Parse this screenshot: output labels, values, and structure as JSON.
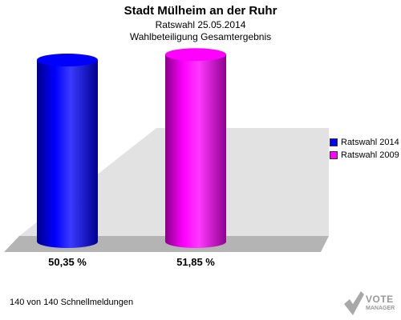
{
  "header": {
    "title": "Stadt Mülheim an der Ruhr",
    "subtitle": "Ratswahl 25.05.2014",
    "subtitle2": "Wahlbeteiligung Gesamtergebnis"
  },
  "chart_data": {
    "type": "bar",
    "categories": [
      "Ratswahl 2014",
      "Ratswahl 2009"
    ],
    "values": [
      50.35,
      51.85
    ],
    "value_labels": [
      "50,35 %",
      "51,85 %"
    ],
    "ylim": [
      0,
      55
    ],
    "grid": false,
    "legend_position": "right",
    "colors": [
      "#0000ff",
      "#ff00ff"
    ]
  },
  "legend": {
    "items": [
      {
        "label": "Ratswahl 2014",
        "color": "#0000ff"
      },
      {
        "label": "Ratswahl 2009",
        "color": "#ff00ff"
      }
    ]
  },
  "footer": {
    "text": "140 von 140 Schnellmeldungen"
  },
  "logo": {
    "line1": "VOTE",
    "line2": "MANAGER"
  }
}
